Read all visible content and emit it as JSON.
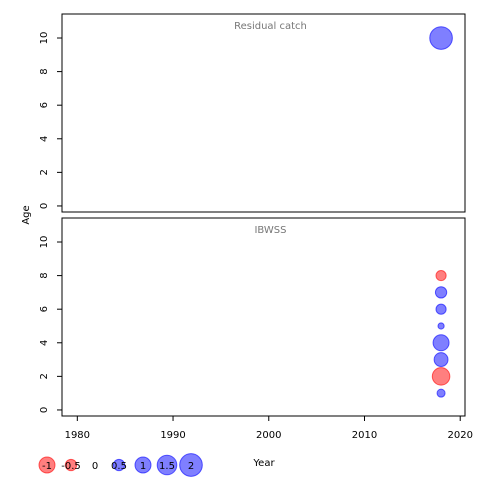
{
  "chart_data": [
    {
      "type": "bubble",
      "title": "Residual catch",
      "x": [
        2018
      ],
      "y": [
        10
      ],
      "values": [
        2
      ],
      "xlim": [
        1978.4,
        2020.5
      ],
      "ylim": [
        -0.36,
        11.43
      ],
      "yticks": [
        0,
        2,
        4,
        6,
        8,
        10
      ]
    },
    {
      "type": "bubble",
      "title": "IBWSS",
      "x": [
        2018,
        2018,
        2018,
        2018,
        2018,
        2018,
        2018,
        2018
      ],
      "y": [
        8,
        7,
        6,
        5,
        4,
        3,
        2,
        1
      ],
      "values": [
        -0.4,
        0.5,
        0.4,
        0.15,
        1.0,
        0.75,
        -1.2,
        0.25
      ],
      "xlim": [
        1978.4,
        2020.5
      ],
      "ylim": [
        -0.36,
        11.43
      ],
      "yticks": [
        0,
        2,
        4,
        6,
        8,
        10
      ],
      "xticks": [
        1980,
        1990,
        2000,
        2010,
        2020
      ]
    }
  ],
  "xlabel": "Year",
  "ylabel": "Age",
  "positive_color": "#0000ff",
  "negative_color": "#ff0000",
  "size_legend": [
    -1,
    -0.5,
    0,
    0.5,
    1,
    1.5,
    2
  ]
}
